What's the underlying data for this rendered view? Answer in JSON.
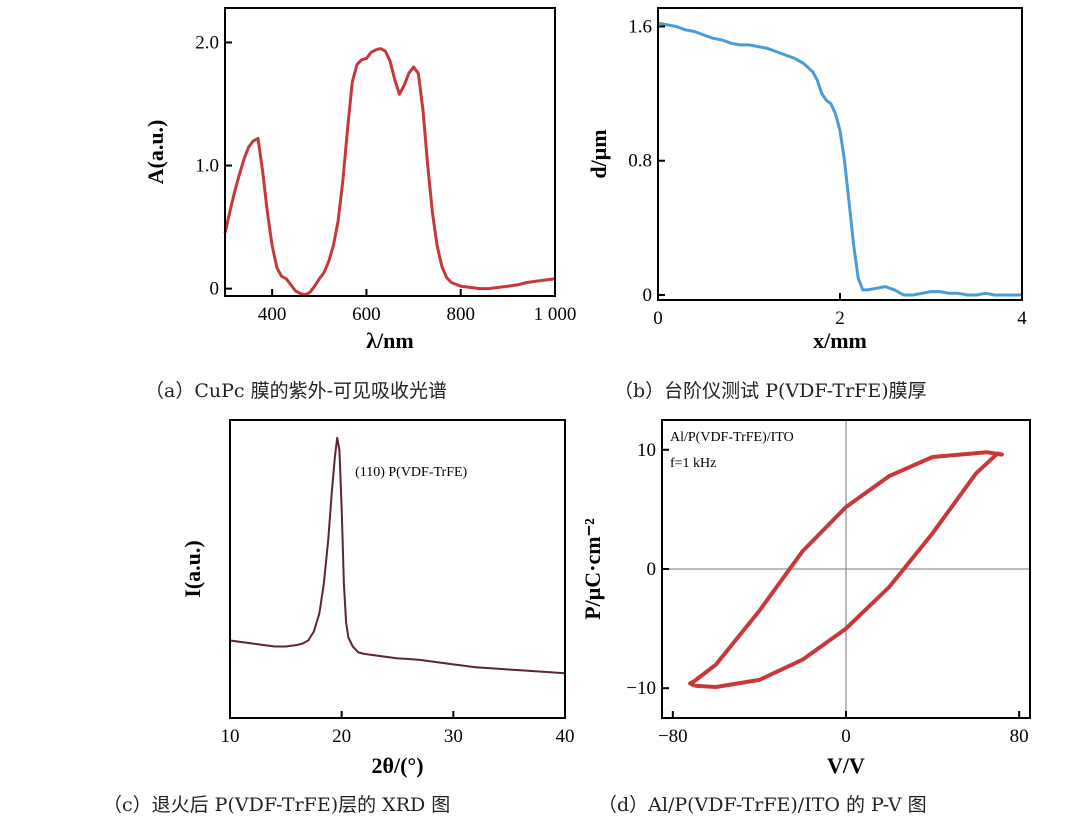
{
  "chart_data": [
    {
      "id": "a",
      "type": "line",
      "caption": "（a）CuPc 膜的紫外-可见吸收光谱",
      "xlabel": "λ/nm",
      "ylabel": "A(a.u.)",
      "xlim": [
        300,
        1000
      ],
      "ylim": [
        -0.06,
        2.28
      ],
      "xticks": [
        400,
        600,
        800,
        1000
      ],
      "xtick_labels": [
        "400",
        "600",
        "800",
        "1 000"
      ],
      "yticks": [
        0,
        1.0,
        2.0
      ],
      "ytick_labels": [
        "0",
        "1.0",
        "2.0"
      ],
      "color": "#c8383b",
      "grid": false,
      "series": [
        {
          "x": [
            300,
            310,
            320,
            330,
            340,
            350,
            360,
            370,
            380,
            390,
            400,
            410,
            420,
            430,
            440,
            450,
            460,
            470,
            480,
            490,
            500,
            510,
            520,
            530,
            540,
            550,
            560,
            570,
            580,
            590,
            600,
            610,
            620,
            630,
            640,
            650,
            660,
            670,
            680,
            690,
            700,
            710,
            720,
            730,
            740,
            750,
            760,
            770,
            780,
            800,
            820,
            840,
            860,
            880,
            900,
            920,
            940,
            960,
            980,
            1000
          ],
          "y": [
            0.45,
            0.62,
            0.78,
            0.92,
            1.05,
            1.15,
            1.2,
            1.22,
            0.95,
            0.62,
            0.35,
            0.17,
            0.1,
            0.08,
            0.03,
            -0.02,
            -0.04,
            -0.05,
            -0.03,
            0.02,
            0.08,
            0.13,
            0.22,
            0.35,
            0.55,
            0.88,
            1.3,
            1.68,
            1.82,
            1.86,
            1.87,
            1.92,
            1.94,
            1.95,
            1.93,
            1.85,
            1.7,
            1.58,
            1.65,
            1.75,
            1.8,
            1.75,
            1.45,
            1.0,
            0.62,
            0.35,
            0.18,
            0.09,
            0.05,
            0.02,
            0.01,
            0.0,
            0.0,
            0.01,
            0.02,
            0.03,
            0.05,
            0.06,
            0.07,
            0.08
          ]
        }
      ]
    },
    {
      "id": "b",
      "type": "line",
      "caption": "（b）台阶仪测试 P(VDF-TrFE)膜厚",
      "xlabel": "x/mm",
      "ylabel": "d/μm",
      "xlim": [
        0,
        4
      ],
      "ylim": [
        -0.03,
        1.71
      ],
      "xticks": [
        0,
        2,
        4
      ],
      "xtick_labels": [
        "0",
        "2",
        "4"
      ],
      "yticks": [
        0,
        0.8,
        1.6
      ],
      "ytick_labels": [
        "0",
        "0.8",
        "1.6"
      ],
      "color": "#4a9cd6",
      "grid": false,
      "series": [
        {
          "x": [
            0,
            0.1,
            0.2,
            0.3,
            0.4,
            0.5,
            0.6,
            0.7,
            0.8,
            0.9,
            1.0,
            1.1,
            1.2,
            1.3,
            1.4,
            1.5,
            1.6,
            1.7,
            1.75,
            1.8,
            1.85,
            1.9,
            1.95,
            2.0,
            2.05,
            2.1,
            2.15,
            2.2,
            2.25,
            2.3,
            2.4,
            2.5,
            2.55,
            2.6,
            2.7,
            2.8,
            2.9,
            3.0,
            3.1,
            3.2,
            3.3,
            3.4,
            3.5,
            3.6,
            3.7,
            3.8,
            4.0
          ],
          "y": [
            1.62,
            1.61,
            1.6,
            1.58,
            1.57,
            1.55,
            1.53,
            1.52,
            1.5,
            1.49,
            1.49,
            1.48,
            1.47,
            1.45,
            1.43,
            1.41,
            1.38,
            1.33,
            1.28,
            1.2,
            1.16,
            1.14,
            1.08,
            0.98,
            0.8,
            0.55,
            0.3,
            0.1,
            0.03,
            0.03,
            0.04,
            0.05,
            0.04,
            0.03,
            0.0,
            0.0,
            0.01,
            0.02,
            0.02,
            0.01,
            0.01,
            0.0,
            0.0,
            0.01,
            0.0,
            0.0,
            0.0
          ]
        }
      ]
    },
    {
      "id": "c",
      "type": "line",
      "caption": "（c）退火后 P(VDF-TrFE)层的 XRD 图",
      "xlabel": "2θ/(°)",
      "ylabel": "I(a.u.)",
      "xlim": [
        10,
        40
      ],
      "ylim": [
        0,
        1.0
      ],
      "xticks": [
        10,
        20,
        30,
        40
      ],
      "xtick_labels": [
        "10",
        "20",
        "30",
        "40"
      ],
      "yticks": [],
      "ytick_labels": [],
      "color": "#5a2340",
      "grid": false,
      "annotation": "(110) P(VDF-TrFE)",
      "series": [
        {
          "x": [
            10,
            11,
            12,
            13,
            14,
            15,
            16,
            16.5,
            17,
            17.5,
            18,
            18.4,
            18.8,
            19.1,
            19.4,
            19.6,
            19.8,
            20.0,
            20.2,
            20.4,
            20.6,
            21.0,
            21.5,
            22,
            23,
            24,
            25,
            26,
            27,
            28,
            29,
            30,
            32,
            34,
            36,
            38,
            40
          ],
          "y": [
            0.26,
            0.255,
            0.25,
            0.245,
            0.24,
            0.24,
            0.245,
            0.25,
            0.26,
            0.29,
            0.35,
            0.45,
            0.6,
            0.75,
            0.88,
            0.94,
            0.9,
            0.7,
            0.45,
            0.32,
            0.27,
            0.24,
            0.22,
            0.215,
            0.21,
            0.205,
            0.2,
            0.198,
            0.195,
            0.19,
            0.185,
            0.18,
            0.17,
            0.165,
            0.16,
            0.155,
            0.15
          ]
        }
      ]
    },
    {
      "id": "d",
      "type": "line",
      "caption": "（d）Al/P(VDF-TrFE)/ITO 的 P-V 图",
      "xlabel": "V/V",
      "ylabel": "P/μC·cm⁻²",
      "xlim": [
        -85,
        85
      ],
      "ylim": [
        -12.5,
        12.5
      ],
      "xticks": [
        -80,
        0,
        80
      ],
      "xtick_labels": [
        "−80",
        "0",
        "80"
      ],
      "yticks": [
        -10,
        0,
        10
      ],
      "ytick_labels": [
        "−10",
        "0",
        "10"
      ],
      "color": "#c8383b",
      "grid": false,
      "annotation_lines": [
        "Al/P(VDF-TrFE)/ITO",
        "f=1 kHz"
      ],
      "series": [
        {
          "x": [
            -70,
            -60,
            -40,
            -20,
            0,
            20,
            40,
            60,
            70,
            72,
            65,
            40,
            20,
            0,
            -20,
            -40,
            -60,
            -70,
            -72,
            -70
          ],
          "y": [
            -9.8,
            -9.9,
            -9.3,
            -7.6,
            -5.0,
            -1.5,
            3.0,
            8.0,
            9.7,
            9.6,
            9.8,
            9.4,
            7.8,
            5.2,
            1.5,
            -3.5,
            -8.0,
            -9.4,
            -9.6,
            -9.8
          ]
        }
      ]
    }
  ]
}
